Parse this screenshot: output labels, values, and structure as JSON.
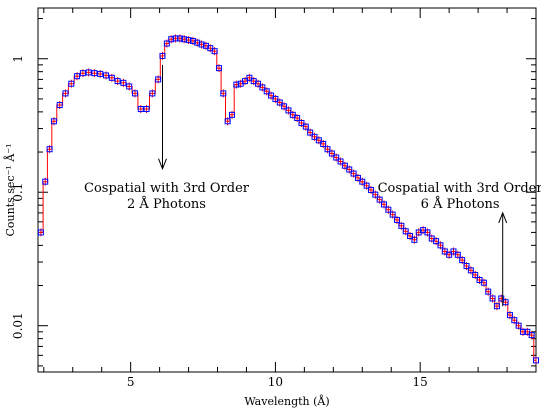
{
  "chart_data": {
    "type": "scatter",
    "title": "",
    "xlabel": "Wavelength (Å)",
    "ylabel": "Counts sec⁻¹ Å⁻¹",
    "xlim": [
      1.8,
      19.0
    ],
    "ylim": [
      0.0045,
      2.4
    ],
    "y_scale": "log",
    "grid": false,
    "x_ticks": [
      5,
      10,
      15
    ],
    "x_tick_labels": [
      "5",
      "10",
      "15"
    ],
    "y_ticks": [
      0.01,
      0.1,
      1
    ],
    "y_tick_labels": [
      "0.01",
      "0.1",
      "1"
    ],
    "series": [
      {
        "style": "points with step model line",
        "marker_color": "#0000ff",
        "model_color": "#ff0000",
        "x": [
          1.9,
          2.05,
          2.2,
          2.35,
          2.55,
          2.75,
          2.95,
          3.15,
          3.35,
          3.55,
          3.75,
          3.95,
          4.15,
          4.35,
          4.55,
          4.75,
          4.95,
          5.15,
          5.35,
          5.55,
          5.75,
          5.95,
          6.1,
          6.25,
          6.4,
          6.55,
          6.7,
          6.85,
          7.0,
          7.15,
          7.3,
          7.45,
          7.6,
          7.75,
          7.9,
          8.05,
          8.2,
          8.35,
          8.5,
          8.65,
          8.8,
          8.95,
          9.1,
          9.25,
          9.4,
          9.55,
          9.7,
          9.85,
          10.0,
          10.15,
          10.3,
          10.45,
          10.6,
          10.75,
          10.9,
          11.05,
          11.2,
          11.35,
          11.5,
          11.65,
          11.8,
          11.95,
          12.1,
          12.25,
          12.4,
          12.55,
          12.7,
          12.85,
          13.0,
          13.15,
          13.3,
          13.45,
          13.6,
          13.75,
          13.9,
          14.05,
          14.2,
          14.35,
          14.5,
          14.65,
          14.8,
          14.95,
          15.1,
          15.25,
          15.4,
          15.55,
          15.7,
          15.85,
          16.0,
          16.15,
          16.3,
          16.45,
          16.6,
          16.75,
          16.9,
          17.05,
          17.2,
          17.35,
          17.5,
          17.65,
          17.8,
          17.95,
          18.1,
          18.25,
          18.4,
          18.55,
          18.7,
          18.85,
          19.0
        ],
        "y": [
          0.05,
          0.12,
          0.21,
          0.34,
          0.45,
          0.55,
          0.65,
          0.74,
          0.78,
          0.79,
          0.78,
          0.77,
          0.75,
          0.72,
          0.68,
          0.66,
          0.62,
          0.55,
          0.42,
          0.42,
          0.55,
          0.7,
          1.05,
          1.3,
          1.4,
          1.42,
          1.42,
          1.4,
          1.38,
          1.36,
          1.32,
          1.28,
          1.25,
          1.2,
          1.14,
          0.85,
          0.55,
          0.34,
          0.38,
          0.64,
          0.65,
          0.68,
          0.72,
          0.68,
          0.65,
          0.61,
          0.57,
          0.53,
          0.5,
          0.47,
          0.44,
          0.41,
          0.38,
          0.36,
          0.33,
          0.31,
          0.28,
          0.26,
          0.245,
          0.23,
          0.21,
          0.195,
          0.182,
          0.17,
          0.158,
          0.148,
          0.138,
          0.128,
          0.12,
          0.112,
          0.104,
          0.096,
          0.088,
          0.081,
          0.074,
          0.068,
          0.062,
          0.056,
          0.051,
          0.047,
          0.044,
          0.05,
          0.052,
          0.05,
          0.045,
          0.043,
          0.04,
          0.036,
          0.034,
          0.036,
          0.034,
          0.031,
          0.028,
          0.026,
          0.024,
          0.022,
          0.021,
          0.018,
          0.016,
          0.014,
          0.016,
          0.015,
          0.012,
          0.011,
          0.01,
          0.009,
          0.009,
          0.0085,
          0.0055
        ]
      }
    ],
    "annotations": [
      {
        "lines": [
          "Cospatial with 3rd Order",
          "2 Å Photons"
        ],
        "arrow_x": 6.1,
        "arrow_from_y": 0.9,
        "arrow_to_y": 0.15,
        "direction": "down"
      },
      {
        "lines": [
          "Cospatial with 3rd Order",
          "6 Å Photons"
        ],
        "arrow_x": 17.85,
        "arrow_from_y": 0.014,
        "arrow_to_y": 0.07,
        "direction": "up"
      }
    ]
  }
}
